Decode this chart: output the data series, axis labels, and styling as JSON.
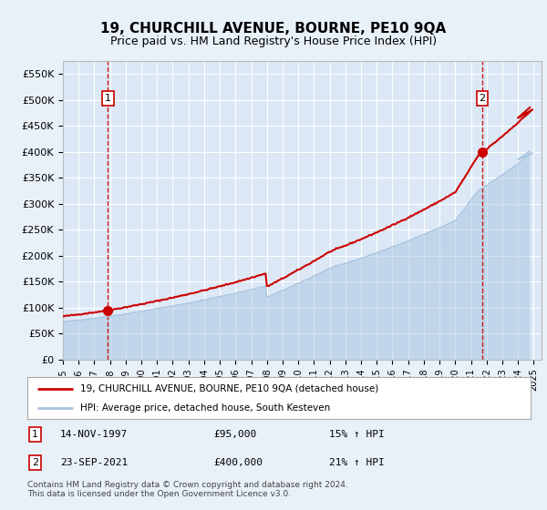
{
  "title": "19, CHURCHILL AVENUE, BOURNE, PE10 9QA",
  "subtitle": "Price paid vs. HM Land Registry's House Price Index (HPI)",
  "legend_line1": "19, CHURCHILL AVENUE, BOURNE, PE10 9QA (detached house)",
  "legend_line2": "HPI: Average price, detached house, South Kesteven",
  "footnote": "Contains HM Land Registry data © Crown copyright and database right 2024.\nThis data is licensed under the Open Government Licence v3.0.",
  "sale1_date": "14-NOV-1997",
  "sale1_price": "£95,000",
  "sale1_hpi": "15% ↑ HPI",
  "sale1_year": 1997.87,
  "sale1_value": 95000,
  "sale2_date": "23-SEP-2021",
  "sale2_price": "£400,000",
  "sale2_hpi": "21% ↑ HPI",
  "sale2_year": 2021.72,
  "sale2_value": 400000,
  "hpi_color": "#a8c4e0",
  "price_color": "#cc0000",
  "bg_color": "#e8f0f8",
  "plot_bg": "#dce8f5",
  "grid_color": "#ffffff",
  "ylim": [
    0,
    575000
  ],
  "yticks": [
    0,
    50000,
    100000,
    150000,
    200000,
    250000,
    300000,
    350000,
    400000,
    450000,
    500000,
    550000
  ],
  "xlim_start": 1995.0,
  "xlim_end": 2025.5,
  "xticks": [
    1995,
    1996,
    1997,
    1998,
    1999,
    2000,
    2001,
    2002,
    2003,
    2004,
    2005,
    2006,
    2007,
    2008,
    2009,
    2010,
    2011,
    2012,
    2013,
    2014,
    2015,
    2016,
    2017,
    2018,
    2019,
    2020,
    2021,
    2022,
    2023,
    2024,
    2025
  ]
}
